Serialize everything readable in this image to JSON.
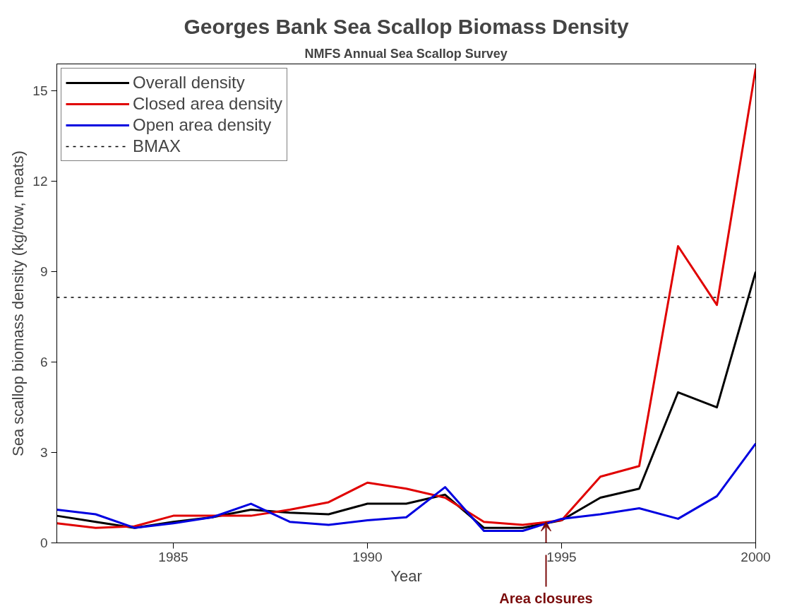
{
  "chart_data": {
    "type": "line",
    "title": "Georges Bank Sea Scallop Biomass Density",
    "subtitle": "NMFS Annual Sea Scallop Survey",
    "xlabel": "Year",
    "ylabel": "Sea scallop biomass density (kg/tow, meats)",
    "x": [
      1982,
      1983,
      1984,
      1985,
      1986,
      1987,
      1988,
      1989,
      1990,
      1991,
      1992,
      1993,
      1994,
      1995,
      1996,
      1997,
      1998,
      1999,
      2000
    ],
    "series": [
      {
        "name": "Overall density",
        "color": "#000000",
        "values": [
          0.9,
          0.7,
          0.5,
          0.7,
          0.85,
          1.1,
          1.0,
          0.95,
          1.3,
          1.3,
          1.6,
          0.5,
          0.5,
          0.75,
          1.5,
          1.8,
          5.0,
          4.5,
          9.0
        ]
      },
      {
        "name": "Closed area density",
        "color": "#e00000",
        "values": [
          0.65,
          0.5,
          0.55,
          0.9,
          0.9,
          0.9,
          1.1,
          1.35,
          2.0,
          1.8,
          1.5,
          0.7,
          0.6,
          0.75,
          2.2,
          2.55,
          9.85,
          7.9,
          15.75
        ]
      },
      {
        "name": "Open area density",
        "color": "#0000e0",
        "values": [
          1.1,
          0.95,
          0.5,
          0.65,
          0.85,
          1.3,
          0.7,
          0.6,
          0.75,
          0.85,
          1.85,
          0.4,
          0.4,
          0.8,
          0.95,
          1.15,
          0.8,
          1.55,
          3.3
        ]
      }
    ],
    "ref_lines": [
      {
        "axis": "y",
        "value": 8.15,
        "label": "BMAX",
        "color": "#000000",
        "line_style": "dashed"
      }
    ],
    "annotations": [
      "Area closures"
    ],
    "xlim": [
      1982,
      2000
    ],
    "ylim": [
      0,
      15.9
    ],
    "xticks": [
      1985,
      1990,
      1995,
      2000
    ],
    "yticks": [
      0,
      3,
      6,
      9,
      12,
      15
    ],
    "grid": false,
    "legend": "top left",
    "line_style": "solid"
  }
}
